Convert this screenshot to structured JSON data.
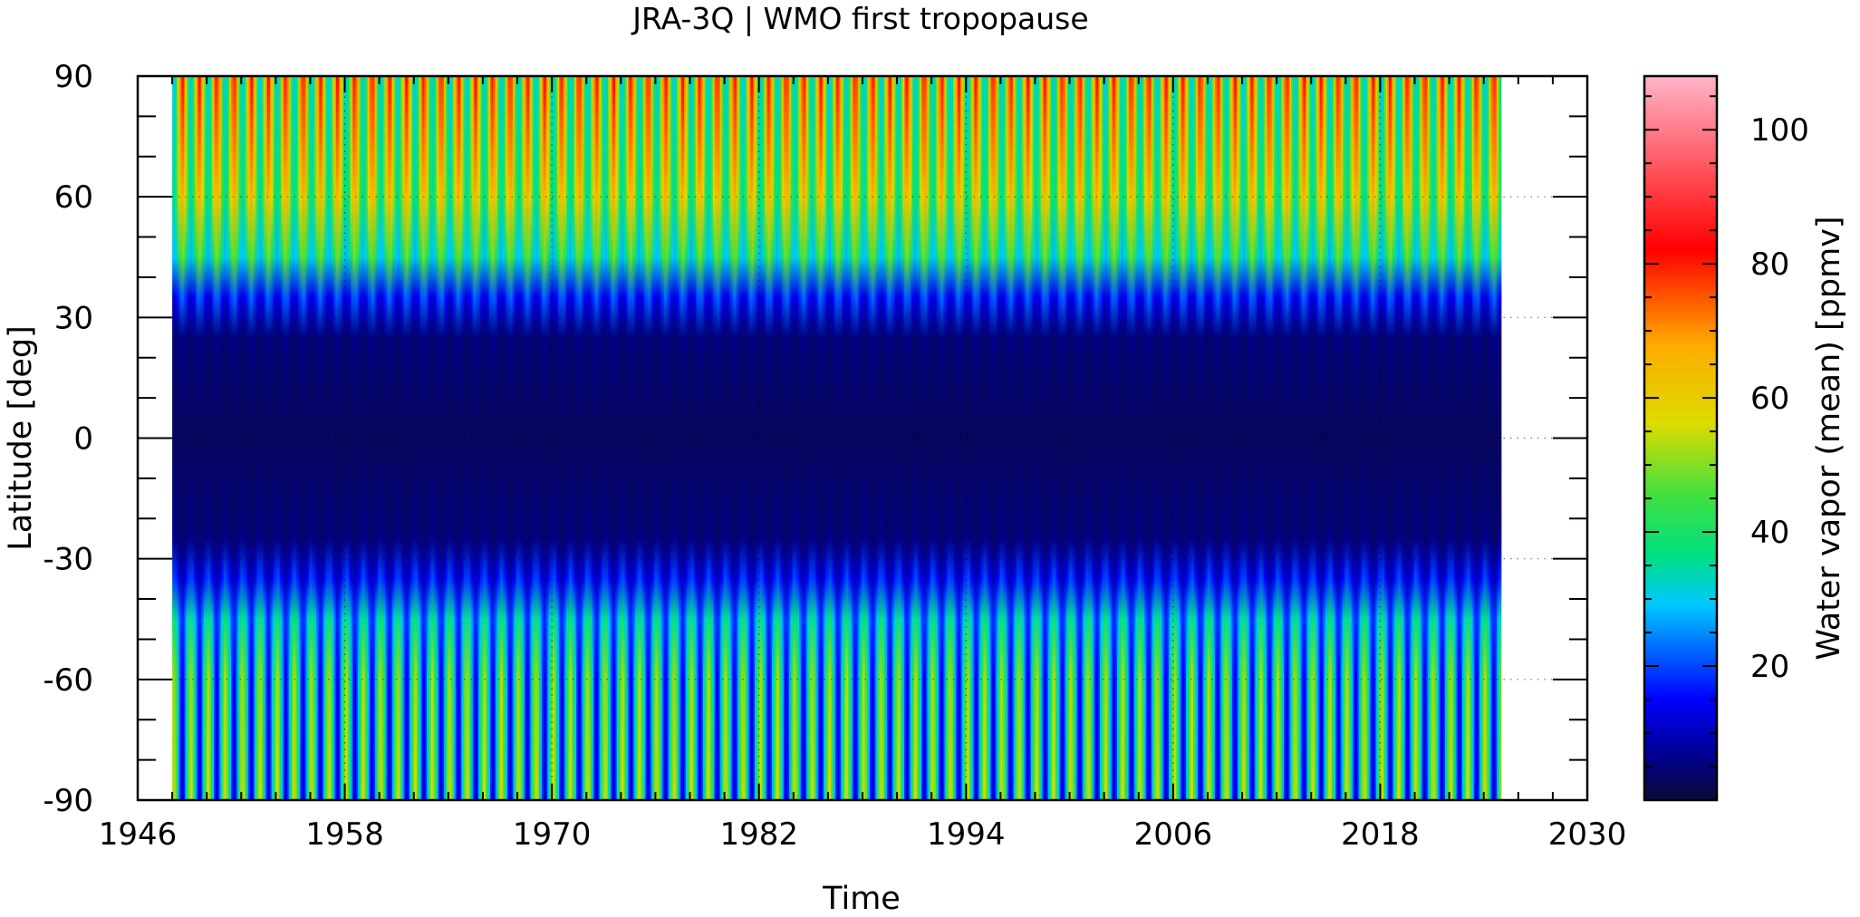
{
  "chart_data": {
    "type": "heatmap",
    "title": "JRA-3Q | WMO first tropopause",
    "xlabel": "Time",
    "ylabel": "Latitude [deg]",
    "colorbar_label": "Water vapor (mean) [ppmv]",
    "xlim": [
      1946,
      2030
    ],
    "ylim": [
      -90,
      90
    ],
    "clim": [
      0,
      108
    ],
    "x_ticks": [
      1946,
      1958,
      1970,
      1982,
      1994,
      2006,
      2018,
      2030
    ],
    "y_ticks": [
      -90,
      -60,
      -30,
      0,
      30,
      60,
      90
    ],
    "colorbar_ticks": [
      20,
      40,
      60,
      80,
      100
    ],
    "data_extent_x": [
      1948,
      2025
    ],
    "grid": "dotted",
    "colormap": [
      "#0a0a35",
      "#00008c",
      "#0000ff",
      "#00c8ff",
      "#00e080",
      "#40e040",
      "#dcdc00",
      "#ffaa00",
      "#ff0000",
      "#ffb4c8"
    ],
    "latitude_profile": [
      {
        "lat": -90,
        "summer": 55,
        "winter": 12
      },
      {
        "lat": -60,
        "summer": 52,
        "winter": 14
      },
      {
        "lat": -45,
        "summer": 38,
        "winter": 18
      },
      {
        "lat": -35,
        "summer": 20,
        "winter": 10
      },
      {
        "lat": -25,
        "summer": 6,
        "winter": 4
      },
      {
        "lat": 0,
        "summer": 3,
        "winter": 3
      },
      {
        "lat": 25,
        "summer": 6,
        "winter": 4
      },
      {
        "lat": 35,
        "summer": 22,
        "winter": 12
      },
      {
        "lat": 45,
        "summer": 48,
        "winter": 28
      },
      {
        "lat": 60,
        "summer": 65,
        "winter": 36
      },
      {
        "lat": 90,
        "summer": 80,
        "winter": 30
      }
    ]
  }
}
